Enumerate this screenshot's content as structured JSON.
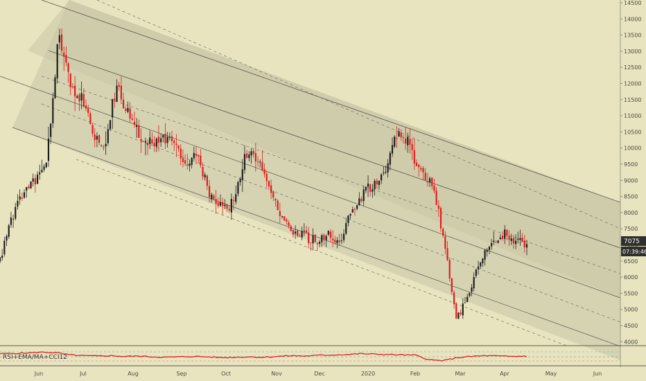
{
  "chart_data": {
    "type": "candlestick",
    "title": "",
    "xlabel": "",
    "ylabel": "",
    "price_axis": {
      "ticks": [
        "14500",
        "14000",
        "13500",
        "13000",
        "12500",
        "12000",
        "11500",
        "11000",
        "10500",
        "10000",
        "9500",
        "9000",
        "8500",
        "8000",
        "7500",
        "7000",
        "6500",
        "6000",
        "5500",
        "5000",
        "4500",
        "4000"
      ],
      "ylim": [
        3800,
        14550
      ]
    },
    "time_axis": {
      "ticks": [
        "Jun",
        "Jul",
        "Aug",
        "Sep",
        "Oct",
        "Nov",
        "Dec",
        "2020",
        "Feb",
        "Mar",
        "Apr",
        "May",
        "Jun"
      ]
    },
    "last_price": "7075",
    "countdown": "07:39:46",
    "colors": {
      "up": "#1e1e1e",
      "down": "#e01c1c",
      "channel": "#b5b39b",
      "last_price_bg": "#2f2f2f"
    },
    "indicator": {
      "label": "RSI+EMA/MA+CCI12",
      "rsi_approx": [
        62,
        64,
        66,
        70,
        68,
        56,
        52,
        50,
        52,
        48,
        50,
        46,
        44,
        46,
        48,
        46,
        42,
        44,
        46,
        44,
        48,
        52,
        50,
        54,
        56,
        58,
        62,
        60,
        58,
        56,
        54,
        30,
        26,
        42,
        48,
        52,
        50,
        48,
        50
      ]
    },
    "series_approx": {
      "close": [
        6500,
        7900,
        8600,
        9000,
        9500,
        13500,
        12000,
        11500,
        10300,
        10000,
        12000,
        11000,
        10300,
        10200,
        10400,
        10000,
        9600,
        9700,
        8400,
        8100,
        8300,
        9800,
        9700,
        8900,
        7900,
        7300,
        7300,
        7100,
        7300,
        7000,
        8100,
        8500,
        8900,
        9300,
        10600,
        10000,
        9200,
        8900,
        6900,
        4700,
        5400,
        6500,
        7000,
        7400,
        7100,
        7075
      ]
    }
  }
}
